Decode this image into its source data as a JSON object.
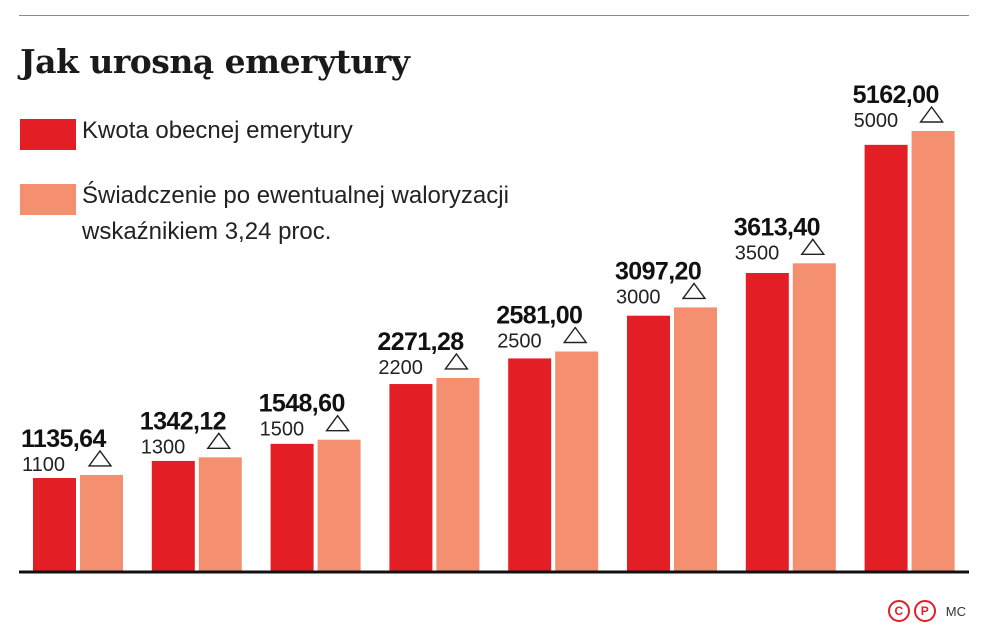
{
  "header": {
    "title": "Jak urosną emerytury"
  },
  "legend": {
    "items": [
      {
        "label": "Kwota obecnej emerytury",
        "color": "#e31e24"
      },
      {
        "label": "Świadczenie po ewentualnej waloryzacji wskaźnikiem 3,24 proc.",
        "color": "#f4906f"
      }
    ]
  },
  "credit": {
    "c": "C",
    "p": "P",
    "author": "MC"
  },
  "chart_data": {
    "type": "bar",
    "title": "Jak urosną emerytury",
    "categories": [
      "1100",
      "1300",
      "1500",
      "2200",
      "2500",
      "3000",
      "3500",
      "5000"
    ],
    "series": [
      {
        "name": "Kwota obecnej emerytury",
        "color": "#e31e24",
        "values": [
          1100,
          1300,
          1500,
          2200,
          2500,
          3000,
          3500,
          5000
        ]
      },
      {
        "name": "Świadczenie po ewentualnej waloryzacji wskaźnikiem 3,24 proc.",
        "color": "#f4906f",
        "values": [
          1135.64,
          1342.12,
          1548.6,
          2271.28,
          2581.0,
          3097.2,
          3613.4,
          5162.0
        ]
      }
    ],
    "value_labels": [
      "1135,64",
      "1342,12",
      "1548,60",
      "2271,28",
      "2581,00",
      "3097,20",
      "3613,40",
      "5162,00"
    ],
    "base_labels": [
      "1100",
      "1300",
      "1500",
      "2200",
      "2500",
      "3000",
      "3500",
      "5000"
    ],
    "ylim": [
      0,
      5162
    ],
    "grid": false,
    "legend_position": "top-left"
  }
}
